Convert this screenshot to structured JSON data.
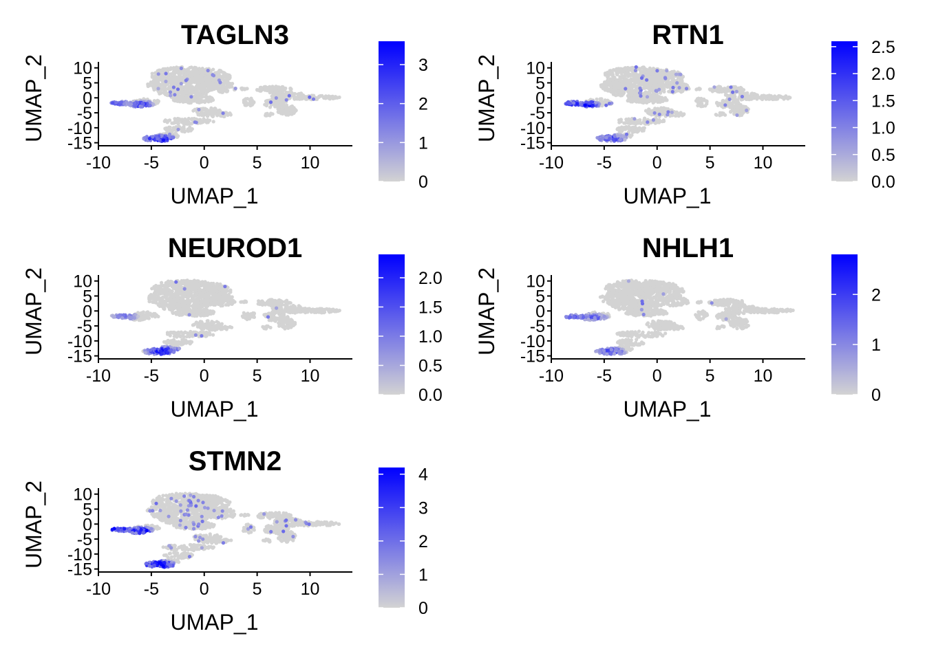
{
  "colors": {
    "low": "#d3d3d3",
    "high": "#0000ff",
    "axis": "#000000",
    "background": "#ffffff"
  },
  "chart_data": [
    {
      "type": "scatter",
      "title": "TAGLN3",
      "xlabel": "UMAP_1",
      "ylabel": "UMAP_2",
      "xlim": [
        -10,
        14
      ],
      "ylim": [
        -16,
        12
      ],
      "x_ticks": [
        -10,
        -5,
        0,
        5,
        10
      ],
      "x_tick_labels": [
        "-10",
        "-5",
        "0",
        "5",
        "10"
      ],
      "y_ticks": [
        -15,
        -10,
        -5,
        0,
        5,
        10
      ],
      "y_tick_labels": [
        "-15",
        "-10",
        "-5",
        "0",
        "5",
        "10"
      ],
      "color_scale": {
        "min": 0,
        "max": 3.6,
        "breaks": [
          0,
          1,
          2,
          3
        ],
        "break_labels": [
          "0",
          "1",
          "2",
          "3"
        ]
      },
      "hotspots": [
        {
          "x": -8.2,
          "y": -1.8,
          "rx": 1.2,
          "ry": 1.0,
          "value": 1.6
        },
        {
          "x": -6.0,
          "y": -2.2,
          "rx": 1.0,
          "ry": 1.0,
          "value": 2.2
        },
        {
          "x": -4.2,
          "y": -13.8,
          "rx": 1.4,
          "ry": 1.2,
          "value": 2.6
        }
      ],
      "background_expr": 0.35
    },
    {
      "type": "scatter",
      "title": "RTN1",
      "xlabel": "UMAP_1",
      "ylabel": "UMAP_2",
      "xlim": [
        -10,
        14
      ],
      "ylim": [
        -16,
        12
      ],
      "x_ticks": [
        -10,
        -5,
        0,
        5,
        10
      ],
      "x_tick_labels": [
        "-10",
        "-5",
        "0",
        "5",
        "10"
      ],
      "y_ticks": [
        -15,
        -10,
        -5,
        0,
        5,
        10
      ],
      "y_tick_labels": [
        "-15",
        "-10",
        "-5",
        "0",
        "5",
        "10"
      ],
      "color_scale": {
        "min": 0,
        "max": 2.6,
        "breaks": [
          0,
          0.5,
          1,
          1.5,
          2,
          2.5
        ],
        "break_labels": [
          "0.0",
          "0.5",
          "1.0",
          "1.5",
          "2.0",
          "2.5"
        ]
      },
      "hotspots": [
        {
          "x": -8.0,
          "y": -2.0,
          "rx": 1.0,
          "ry": 0.9,
          "value": 1.7
        },
        {
          "x": -6.4,
          "y": -2.2,
          "rx": 0.8,
          "ry": 0.9,
          "value": 2.2
        },
        {
          "x": -4.3,
          "y": -13.5,
          "rx": 1.2,
          "ry": 1.1,
          "value": 1.5
        }
      ],
      "background_expr": 0.45
    },
    {
      "type": "scatter",
      "title": "NEUROD1",
      "xlabel": "UMAP_1",
      "ylabel": "UMAP_2",
      "xlim": [
        -10,
        14
      ],
      "ylim": [
        -16,
        12
      ],
      "x_ticks": [
        -10,
        -5,
        0,
        5,
        10
      ],
      "x_tick_labels": [
        "-10",
        "-5",
        "0",
        "5",
        "10"
      ],
      "y_ticks": [
        -15,
        -10,
        -5,
        0,
        5,
        10
      ],
      "y_tick_labels": [
        "-15",
        "-10",
        "-5",
        "0",
        "5",
        "10"
      ],
      "color_scale": {
        "min": 0,
        "max": 2.4,
        "breaks": [
          0,
          0.5,
          1,
          1.5,
          2
        ],
        "break_labels": [
          "0.0",
          "0.5",
          "1.0",
          "1.5",
          "2.0"
        ]
      },
      "hotspots": [
        {
          "x": -7.5,
          "y": -1.8,
          "rx": 1.0,
          "ry": 0.9,
          "value": 1.0
        },
        {
          "x": -3.8,
          "y": -13.5,
          "rx": 1.5,
          "ry": 1.3,
          "value": 1.8
        }
      ],
      "background_expr": 0.1
    },
    {
      "type": "scatter",
      "title": "NHLH1",
      "xlabel": "UMAP_1",
      "ylabel": "UMAP_2",
      "xlim": [
        -10,
        14
      ],
      "ylim": [
        -16,
        12
      ],
      "x_ticks": [
        -10,
        -5,
        0,
        5,
        10
      ],
      "x_tick_labels": [
        "-10",
        "-5",
        "0",
        "5",
        "10"
      ],
      "y_ticks": [
        -15,
        -10,
        -5,
        0,
        5,
        10
      ],
      "y_tick_labels": [
        "-15",
        "-10",
        "-5",
        "0",
        "5",
        "10"
      ],
      "color_scale": {
        "min": 0,
        "max": 2.8,
        "breaks": [
          0,
          1,
          2
        ],
        "break_labels": [
          "0",
          "1",
          "2"
        ]
      },
      "hotspots": [
        {
          "x": -7.6,
          "y": -2.0,
          "rx": 1.2,
          "ry": 1.0,
          "value": 1.3
        },
        {
          "x": -5.8,
          "y": -2.1,
          "rx": 0.9,
          "ry": 0.9,
          "value": 1.5
        },
        {
          "x": -4.5,
          "y": -13.5,
          "rx": 1.3,
          "ry": 1.2,
          "value": 1.4
        }
      ],
      "background_expr": 0.05
    },
    {
      "type": "scatter",
      "title": "STMN2",
      "xlabel": "UMAP_1",
      "ylabel": "UMAP_2",
      "xlim": [
        -10,
        14
      ],
      "ylim": [
        -16,
        12
      ],
      "x_ticks": [
        -10,
        -5,
        0,
        5,
        10
      ],
      "x_tick_labels": [
        "-10",
        "-5",
        "0",
        "5",
        "10"
      ],
      "y_ticks": [
        -15,
        -10,
        -5,
        0,
        5,
        10
      ],
      "y_tick_labels": [
        "-15",
        "-10",
        "-5",
        "0",
        "5",
        "10"
      ],
      "color_scale": {
        "min": 0,
        "max": 4.2,
        "breaks": [
          0,
          1,
          2,
          3,
          4
        ],
        "break_labels": [
          "0",
          "1",
          "2",
          "3",
          "4"
        ]
      },
      "hotspots": [
        {
          "x": -8.2,
          "y": -1.6,
          "rx": 1.2,
          "ry": 1.0,
          "value": 3.2
        },
        {
          "x": -6.0,
          "y": -2.2,
          "rx": 1.0,
          "ry": 1.0,
          "value": 3.6
        },
        {
          "x": -4.3,
          "y": -13.6,
          "rx": 1.3,
          "ry": 1.2,
          "value": 3.8
        }
      ],
      "background_expr": 0.6
    }
  ]
}
